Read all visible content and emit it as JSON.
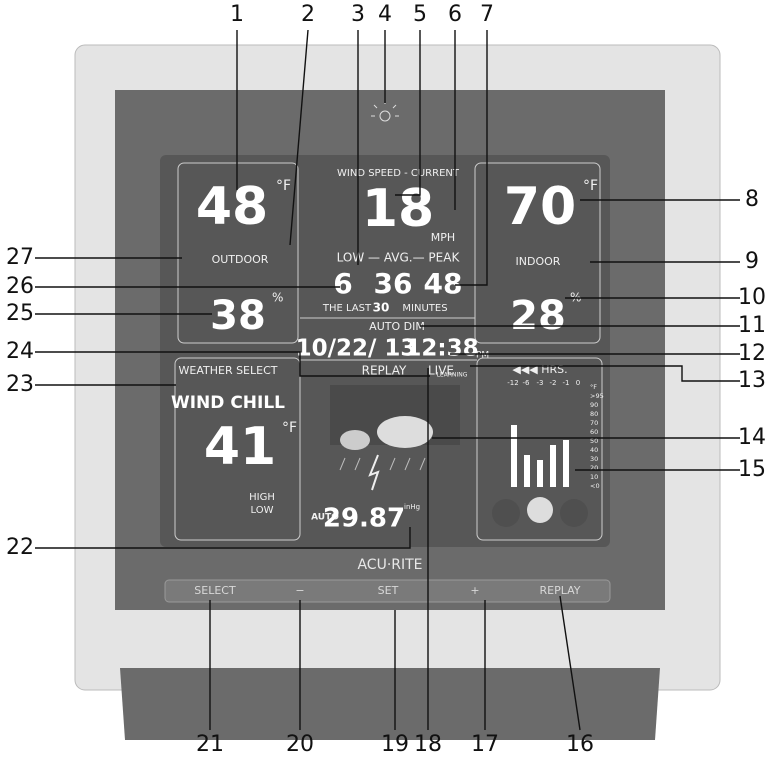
{
  "callouts": [
    1,
    2,
    3,
    4,
    5,
    6,
    7,
    8,
    9,
    10,
    11,
    12,
    13,
    14,
    15,
    16,
    17,
    18,
    19,
    20,
    21,
    22,
    23,
    24,
    25,
    26,
    27
  ],
  "display": {
    "outdoor_temp": "48",
    "outdoor_temp_unit": "°F",
    "outdoor_label": "OUTDOOR",
    "wind_title": "WIND SPEED - CURRENT",
    "wind_speed": "18",
    "wind_unit": "MPH",
    "wind_stats_label": "LOW — AVG.— PEAK",
    "wind_low": "6",
    "wind_avg": "36",
    "wind_peak": "48",
    "last_label": "THE LAST",
    "last_minutes": "30",
    "minutes_label": "MINUTES",
    "indoor_temp": "70",
    "indoor_temp_unit": "°F",
    "indoor_label": "INDOOR",
    "outdoor_humidity": "38",
    "outdoor_humidity_unit": "%",
    "indoor_humidity": "28",
    "indoor_humidity_unit": "%",
    "auto_dim": "AUTO DIM",
    "date": "10/22/ 13",
    "time": "12:38",
    "ampm": "PM",
    "replay": "REPLAY",
    "live": "LIVE",
    "weather_select": "WEATHER SELECT",
    "select_mode": "WIND CHILL",
    "select_value": "41",
    "select_unit": "°F",
    "high": "HIGH",
    "low": "LOW",
    "pressure_auto": "AUTO",
    "pressure": "29.87",
    "pressure_unit": "inHg",
    "learning": "LEARNING",
    "history_title": "◀◀◀ HRS.",
    "history_hours": [
      "-12",
      "-6",
      "-3",
      "-2",
      "-1",
      "0"
    ],
    "history_scale": [
      "°F",
      ">95",
      "90",
      "80",
      "70",
      "60",
      "50",
      "40",
      "30",
      "20",
      "10",
      "<0"
    ]
  },
  "brand": "ACU·RITE",
  "buttons": [
    "SELECT",
    "−",
    "SET",
    "+",
    "REPLAY"
  ]
}
